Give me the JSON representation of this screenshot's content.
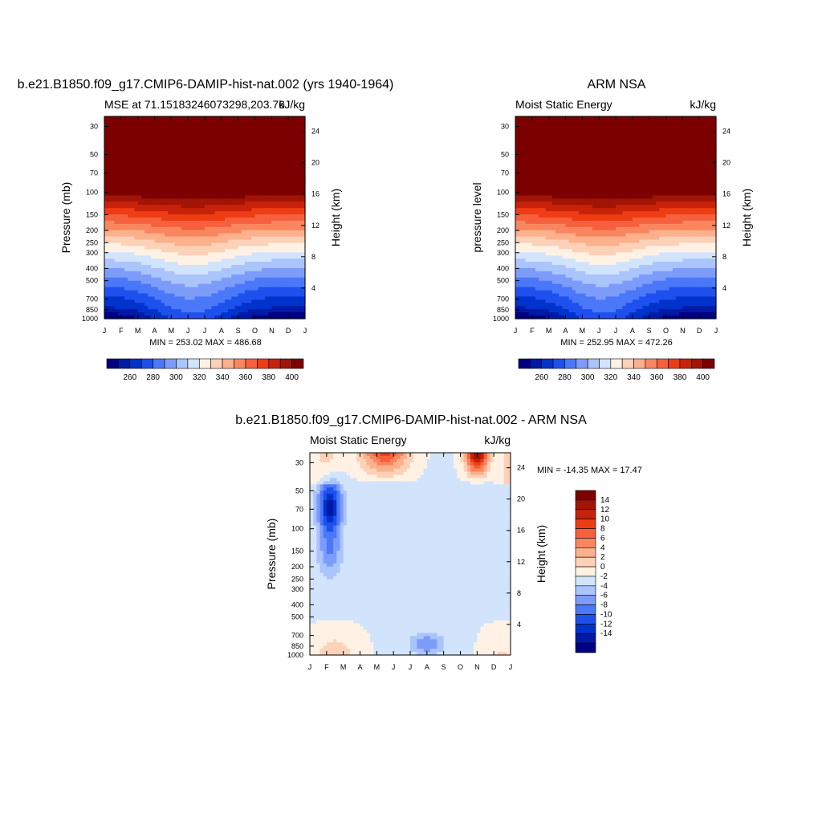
{
  "months": [
    "J",
    "F",
    "M",
    "A",
    "M",
    "J",
    "J",
    "A",
    "S",
    "O",
    "N",
    "D",
    "J"
  ],
  "pressure_ticks": [
    "30",
    "50",
    "70",
    "100",
    "150",
    "200",
    "250",
    "300",
    "400",
    "500",
    "700",
    "850",
    "1000"
  ],
  "height_ticks": [
    "24",
    "20",
    "16",
    "12",
    "8",
    "4"
  ],
  "colors": {
    "mse_levels": [
      "#000080",
      "#0019a6",
      "#0032cc",
      "#1e50ee",
      "#4b78f8",
      "#7d9cfa",
      "#aac4fc",
      "#d2e4fc",
      "#fff2e4",
      "#fdd1b8",
      "#fcb08c",
      "#fa8660",
      "#f6603c",
      "#ee3c14",
      "#c8220a",
      "#a21406",
      "#7c0000"
    ],
    "diff_levels": [
      "#000080",
      "#0019a6",
      "#0032cc",
      "#1e50ee",
      "#4b78f8",
      "#7d9cfa",
      "#aac4fc",
      "#d2e4fc",
      "#fff2e4",
      "#fdd1b8",
      "#fcb08c",
      "#fa8660",
      "#f6603c",
      "#ee3c14",
      "#c8220a",
      "#a21406",
      "#7c0000"
    ]
  },
  "chart_data": [
    {
      "type": "heatmap",
      "title": "b.e21.B1850.f09_g17.CMIP6-DAMIP-hist-nat.002 (yrs 1940-1964)",
      "left_label": "MSE at 71.15183246073298,203.76",
      "right_label": "kJ/kg",
      "xlabel": "",
      "ylabel": "Pressure (mb)",
      "ylabel_right": "Height (km)",
      "x": [
        "J",
        "F",
        "M",
        "A",
        "M",
        "J",
        "J",
        "A",
        "S",
        "O",
        "N",
        "D",
        "J"
      ],
      "y_pressure": [
        30,
        50,
        70,
        100,
        150,
        200,
        250,
        300,
        400,
        500,
        700,
        850,
        1000
      ],
      "summary": "MIN = 253.02 MAX = 486.68",
      "colorbar": {
        "min": 250,
        "max": 410,
        "ticks": [
          "260",
          "280",
          "300",
          "320",
          "340",
          "360",
          "380",
          "400"
        ]
      },
      "min": 253.02,
      "max": 486.68,
      "profile_near_sfc": [
        262,
        262,
        262,
        264,
        270,
        276,
        279,
        276,
        270,
        264,
        262,
        262,
        262
      ],
      "seasonal_amp": [
        0,
        0.08,
        0.25,
        0.55,
        0.85,
        1.0,
        0.95,
        0.7,
        0.4,
        0.15,
        0.05,
        0,
        0
      ]
    },
    {
      "type": "heatmap",
      "title": "ARM NSA",
      "left_label": "Moist Static Energy",
      "right_label": "kJ/kg",
      "xlabel": "",
      "ylabel": "pressure level",
      "ylabel_right": "Height (km)",
      "x": [
        "J",
        "F",
        "M",
        "A",
        "M",
        "J",
        "J",
        "A",
        "S",
        "O",
        "N",
        "D",
        "J"
      ],
      "y_pressure": [
        30,
        50,
        70,
        100,
        150,
        200,
        250,
        300,
        400,
        500,
        700,
        850,
        1000
      ],
      "summary": "MIN = 252.95 MAX = 472.26",
      "colorbar": {
        "min": 250,
        "max": 410,
        "ticks": [
          "260",
          "280",
          "300",
          "320",
          "340",
          "360",
          "380",
          "400"
        ]
      },
      "min": 252.95,
      "max": 472.26,
      "profile_near_sfc": [
        262,
        262,
        262,
        264,
        270,
        276,
        279,
        276,
        270,
        264,
        262,
        262,
        262
      ],
      "seasonal_amp": [
        0,
        0.08,
        0.25,
        0.5,
        0.85,
        1.0,
        0.95,
        0.65,
        0.35,
        0.15,
        0.05,
        0,
        0
      ]
    },
    {
      "type": "heatmap",
      "title": "b.e21.B1850.f09_g17.CMIP6-DAMIP-hist-nat.002 - ARM NSA",
      "left_label": "Moist Static Energy",
      "right_label": "kJ/kg",
      "xlabel": "",
      "ylabel": "Pressure (mb)",
      "ylabel_right": "Height (km)",
      "x": [
        "J",
        "F",
        "M",
        "A",
        "M",
        "J",
        "J",
        "A",
        "S",
        "O",
        "N",
        "D",
        "J"
      ],
      "y_pressure": [
        30,
        50,
        70,
        100,
        150,
        200,
        250,
        300,
        400,
        500,
        700,
        850,
        1000
      ],
      "summary": "MIN = -14.35 MAX =  17.47",
      "colorbar": {
        "min": -16,
        "max": 16,
        "ticks": [
          "14",
          "12",
          "10",
          "8",
          "6",
          "4",
          "2",
          "0",
          "-2",
          "-4",
          "-6",
          "-8",
          "-10",
          "-12",
          "-14"
        ]
      },
      "min": -14.35,
      "max": 17.47
    }
  ]
}
